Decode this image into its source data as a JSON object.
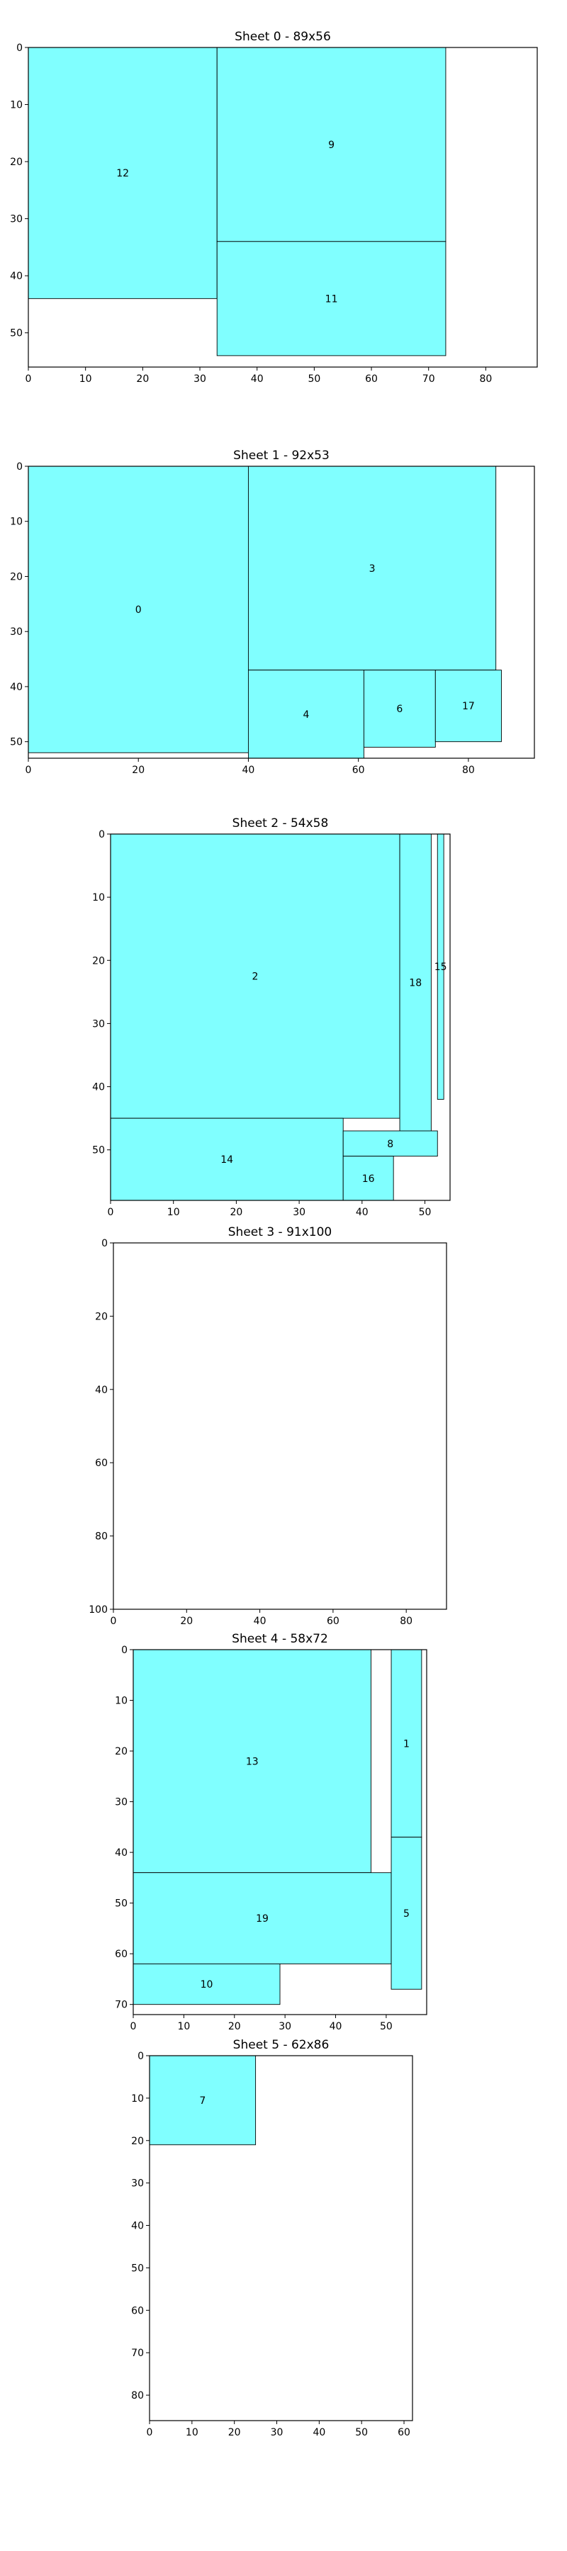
{
  "chart_data": [
    {
      "type": "packing",
      "title": "Sheet 0 - 89x56",
      "xlim": [
        0,
        89
      ],
      "ylim": [
        56,
        0
      ],
      "xticks": [
        "0",
        "10",
        "20",
        "30",
        "40",
        "50",
        "60",
        "70",
        "80"
      ],
      "yticks": [
        "0",
        "10",
        "20",
        "30",
        "40",
        "50"
      ],
      "pieces": [
        {
          "label": "12",
          "x": 0,
          "y": 0,
          "w": 33,
          "h": 44
        },
        {
          "label": "9",
          "x": 33,
          "y": 0,
          "w": 40,
          "h": 34
        },
        {
          "label": "11",
          "x": 33,
          "y": 34,
          "w": 40,
          "h": 20
        }
      ]
    },
    {
      "type": "packing",
      "title": "Sheet 1 - 92x53",
      "xlim": [
        0,
        92
      ],
      "ylim": [
        53,
        0
      ],
      "xticks": [
        "0",
        "20",
        "40",
        "60",
        "80"
      ],
      "yticks": [
        "0",
        "10",
        "20",
        "30",
        "40",
        "50"
      ],
      "pieces": [
        {
          "label": "0",
          "x": 0,
          "y": 0,
          "w": 40,
          "h": 52
        },
        {
          "label": "3",
          "x": 40,
          "y": 0,
          "w": 45,
          "h": 37
        },
        {
          "label": "4",
          "x": 40,
          "y": 37,
          "w": 21,
          "h": 16
        },
        {
          "label": "6",
          "x": 61,
          "y": 37,
          "w": 13,
          "h": 14
        },
        {
          "label": "17",
          "x": 74,
          "y": 37,
          "w": 12,
          "h": 13
        }
      ]
    },
    {
      "type": "packing",
      "title": "Sheet 2 - 54x58",
      "xlim": [
        0,
        54
      ],
      "ylim": [
        58,
        0
      ],
      "xticks": [
        "0",
        "10",
        "20",
        "30",
        "40",
        "50"
      ],
      "yticks": [
        "0",
        "10",
        "20",
        "30",
        "40",
        "50"
      ],
      "pieces": [
        {
          "label": "2",
          "x": 0,
          "y": 0,
          "w": 46,
          "h": 45
        },
        {
          "label": "18",
          "x": 46,
          "y": 0,
          "w": 5,
          "h": 47
        },
        {
          "label": "15",
          "x": 52,
          "y": 0,
          "w": 1,
          "h": 42
        },
        {
          "label": "14",
          "x": 0,
          "y": 45,
          "w": 37,
          "h": 13
        },
        {
          "label": "8",
          "x": 37,
          "y": 47,
          "w": 15,
          "h": 4
        },
        {
          "label": "16",
          "x": 37,
          "y": 51,
          "w": 8,
          "h": 7
        }
      ]
    },
    {
      "type": "packing",
      "title": "Sheet 3 - 91x100",
      "xlim": [
        0,
        91
      ],
      "ylim": [
        100,
        0
      ],
      "xticks": [
        "0",
        "20",
        "40",
        "60",
        "80"
      ],
      "yticks": [
        "0",
        "20",
        "40",
        "60",
        "80",
        "100"
      ],
      "pieces": []
    },
    {
      "type": "packing",
      "title": "Sheet 4 - 58x72",
      "xlim": [
        0,
        58
      ],
      "ylim": [
        72,
        0
      ],
      "xticks": [
        "0",
        "10",
        "20",
        "30",
        "40",
        "50"
      ],
      "yticks": [
        "0",
        "10",
        "20",
        "30",
        "40",
        "50",
        "60",
        "70"
      ],
      "pieces": [
        {
          "label": "13",
          "x": 0,
          "y": 0,
          "w": 47,
          "h": 44
        },
        {
          "label": "1",
          "x": 51,
          "y": 0,
          "w": 6,
          "h": 37
        },
        {
          "label": "19",
          "x": 0,
          "y": 44,
          "w": 51,
          "h": 18
        },
        {
          "label": "5",
          "x": 51,
          "y": 37,
          "w": 6,
          "h": 30
        },
        {
          "label": "10",
          "x": 0,
          "y": 62,
          "w": 29,
          "h": 8
        }
      ]
    },
    {
      "type": "packing",
      "title": "Sheet 5 - 62x86",
      "xlim": [
        0,
        62
      ],
      "ylim": [
        86,
        0
      ],
      "xticks": [
        "0",
        "10",
        "20",
        "30",
        "40",
        "50",
        "60"
      ],
      "yticks": [
        "0",
        "10",
        "20",
        "30",
        "40",
        "50",
        "60",
        "70",
        "80"
      ],
      "pieces": [
        {
          "label": "7",
          "x": 0,
          "y": 0,
          "w": 25,
          "h": 21
        }
      ]
    }
  ]
}
